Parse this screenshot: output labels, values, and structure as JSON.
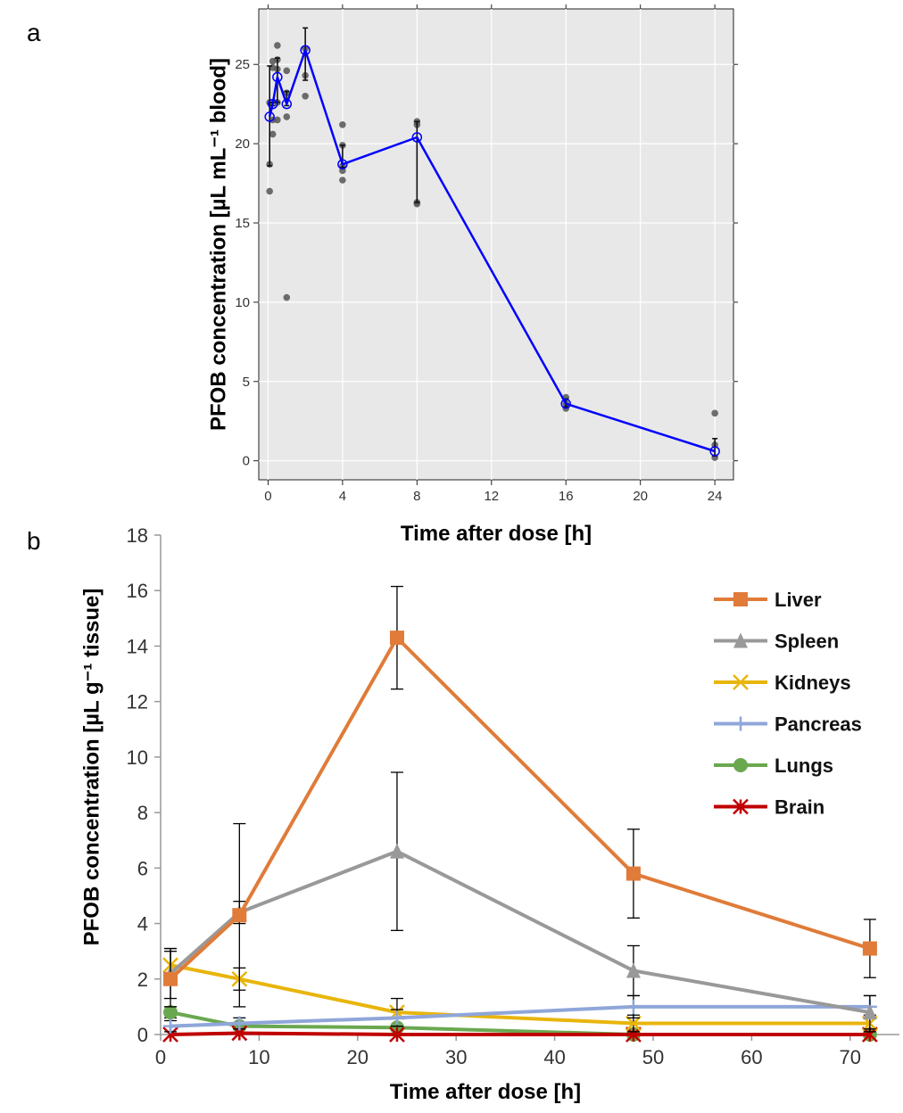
{
  "chart_data": [
    {
      "panel": "a",
      "type": "line",
      "xlabel": "Time after dose [h]",
      "ylabel": "PFOB concentration [µL mL⁻¹ blood]",
      "xlim": [
        -0.5,
        25
      ],
      "ylim": [
        -1.2,
        28.5
      ],
      "xticks": [
        0,
        4,
        8,
        12,
        16,
        20,
        24
      ],
      "yticks": [
        0,
        5,
        10,
        15,
        20,
        25
      ],
      "grid": true,
      "background": "#e8e8e8",
      "line_color": "#0000ff",
      "point_color": "#555555",
      "mean": {
        "x": [
          0.083,
          0.25,
          0.5,
          1,
          2,
          4,
          8,
          16,
          24
        ],
        "y": [
          21.7,
          22.5,
          24.2,
          22.5,
          25.9,
          18.7,
          20.4,
          3.6,
          0.6
        ],
        "err_low": [
          18.6,
          22.4,
          22.6,
          22.4,
          24.0,
          18.5,
          16.3,
          3.4,
          0.3
        ],
        "err_high": [
          24.9,
          22.6,
          25.4,
          23.3,
          27.3,
          19.9,
          21.4,
          3.9,
          1.4
        ]
      },
      "points": {
        "x": [
          0.083,
          0.083,
          0.083,
          0.25,
          0.25,
          0.25,
          0.25,
          0.5,
          0.5,
          0.5,
          0.5,
          0.5,
          1,
          1,
          1,
          1,
          2,
          2,
          2,
          4,
          4,
          4,
          4,
          4,
          8,
          8,
          8,
          8,
          16,
          16,
          16,
          24,
          24,
          24
        ],
        "y": [
          17.0,
          18.7,
          22.6,
          20.6,
          21.5,
          24.8,
          25.2,
          21.5,
          22.6,
          24.7,
          25.3,
          26.2,
          10.3,
          21.7,
          23.2,
          24.6,
          23.0,
          24.3,
          26.0,
          17.7,
          18.3,
          18.6,
          19.9,
          21.2,
          16.2,
          16.3,
          21.2,
          21.4,
          3.3,
          3.6,
          4.0,
          0.2,
          1.0,
          3.0
        ]
      }
    },
    {
      "panel": "b",
      "type": "line",
      "xlabel": "Time after dose [h]",
      "ylabel": "PFOB concentration [µL g⁻¹ tissue]",
      "xlim": [
        0,
        75
      ],
      "ylim": [
        0,
        18
      ],
      "xticks": [
        0,
        10,
        20,
        30,
        40,
        50,
        60,
        70
      ],
      "yticks": [
        0,
        2,
        4,
        6,
        8,
        10,
        12,
        14,
        16,
        18
      ],
      "grid": false,
      "legend_position": "top-right",
      "x": [
        1,
        8,
        24,
        48,
        72
      ],
      "series": [
        {
          "name": "Liver",
          "color": "#e07b39",
          "marker": "square",
          "values": [
            2.0,
            4.3,
            14.3,
            5.8,
            3.1
          ],
          "err": [
            1.0,
            3.3,
            1.85,
            1.6,
            1.05
          ]
        },
        {
          "name": "Spleen",
          "color": "#999999",
          "marker": "triangle",
          "values": [
            2.2,
            4.4,
            6.6,
            2.3,
            0.8
          ],
          "err": [
            0.9,
            0.4,
            2.85,
            0.9,
            0.6
          ]
        },
        {
          "name": "Kidneys",
          "color": "#e8b50c",
          "marker": "x",
          "values": [
            2.5,
            2.0,
            0.8,
            0.4,
            0.4
          ],
          "err": [
            0.6,
            0.4,
            0.5,
            0.3,
            0.3
          ]
        },
        {
          "name": "Pancreas",
          "color": "#8fa6d9",
          "marker": "plus",
          "values": [
            0.3,
            0.4,
            0.6,
            1.0,
            1.0
          ],
          "err": [
            0.2,
            0.2,
            0.3,
            0.4,
            0.4
          ]
        },
        {
          "name": "Lungs",
          "color": "#6aa84f",
          "marker": "circle",
          "values": [
            0.8,
            0.3,
            0.25,
            0.0,
            0.0
          ],
          "err": [
            0.2,
            0.1,
            0.1,
            0.05,
            0.05
          ]
        },
        {
          "name": "Brain",
          "color": "#c00000",
          "marker": "asterisk",
          "values": [
            0.0,
            0.05,
            0.0,
            0.0,
            0.0
          ],
          "err": [
            0.0,
            0.0,
            0.0,
            0.0,
            0.0
          ]
        }
      ]
    }
  ],
  "panels": {
    "a": "a",
    "b": "b"
  }
}
